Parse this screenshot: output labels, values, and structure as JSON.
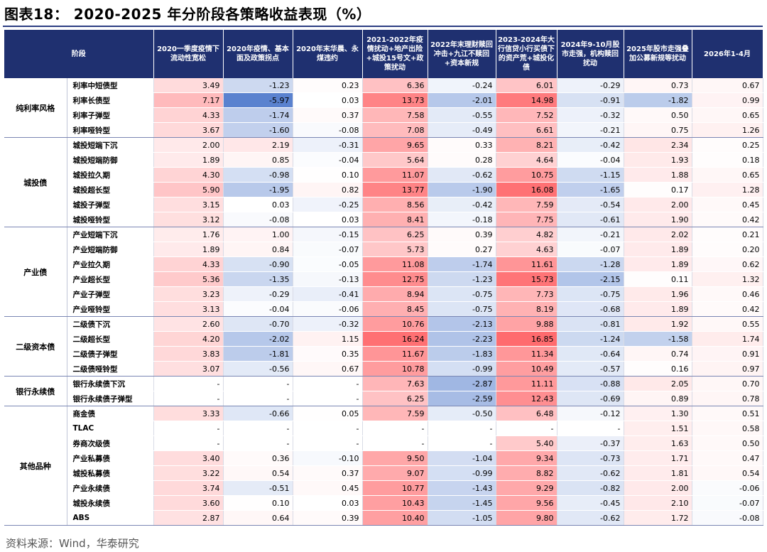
{
  "title": "图表18： 2020-2025 年分阶段各策略收益表现（%）",
  "source": "资料来源：Wind，华泰研究",
  "header": {
    "stage": "阶段",
    "columns": [
      "2020一季度疫情下流动性宽松",
      "2020年疫情、基本面及政策拐点",
      "2020年末华晨、永煤违约",
      "2021-2022年疫情扰动+地产出险+城投15号文+政策扰动",
      "2022年末理财赎回冲击+九江不赎回+资本新规",
      "2023-2024年大行信贷小行买债下的资产荒+城投化债",
      "2024年9-10月股市走强，机构赎回扰动",
      "2025年股市走强叠加公募新规等扰动",
      "2026年1-4月"
    ]
  },
  "colors": {
    "header_bg": "#1f3070",
    "pos_max": "#ef6b6e",
    "neg_max": "#5a82cf"
  },
  "groups": [
    {
      "name": "纯利率风格",
      "rows": [
        {
          "name": "利率中短债型",
          "values": [
            "3.49",
            "-1.23",
            "0.23",
            "6.36",
            "-0.24",
            "6.01",
            "-0.29",
            "0.73",
            "0.67"
          ]
        },
        {
          "name": "利率长债型",
          "values": [
            "7.17",
            "-5.97",
            "0.03",
            "13.73",
            "-2.01",
            "14.98",
            "-0.91",
            "-1.82",
            "0.99"
          ]
        },
        {
          "name": "利率子弹型",
          "values": [
            "4.33",
            "-1.74",
            "0.37",
            "7.58",
            "-0.55",
            "7.52",
            "-0.32",
            "0.50",
            "0.65"
          ]
        },
        {
          "name": "利率哑铃型",
          "values": [
            "3.67",
            "-1.60",
            "-0.08",
            "7.08",
            "-0.49",
            "6.61",
            "-0.21",
            "0.75",
            "1.26"
          ]
        }
      ]
    },
    {
      "name": "城投债",
      "rows": [
        {
          "name": "城投短端下沉",
          "values": [
            "2.00",
            "2.19",
            "-0.31",
            "9.65",
            "0.33",
            "8.21",
            "-0.42",
            "2.34",
            "0.25"
          ]
        },
        {
          "name": "城投短端防御",
          "values": [
            "1.89",
            "0.85",
            "-0.04",
            "5.64",
            "0.28",
            "4.64",
            "-0.04",
            "1.93",
            "0.18"
          ]
        },
        {
          "name": "城投拉久期",
          "values": [
            "4.30",
            "-0.98",
            "0.10",
            "11.07",
            "-0.62",
            "10.75",
            "-1.15",
            "1.88",
            "0.65"
          ]
        },
        {
          "name": "城投超长型",
          "values": [
            "5.90",
            "-1.95",
            "0.82",
            "13.77",
            "-1.90",
            "16.08",
            "-1.65",
            "0.17",
            "1.28"
          ]
        },
        {
          "name": "城投子弹型",
          "values": [
            "3.15",
            "0.03",
            "-0.25",
            "8.56",
            "-0.42",
            "7.59",
            "-0.54",
            "2.00",
            "0.45"
          ]
        },
        {
          "name": "城投哑铃型",
          "values": [
            "3.12",
            "-0.08",
            "0.03",
            "8.41",
            "-0.18",
            "7.75",
            "-0.61",
            "1.90",
            "0.42"
          ]
        }
      ]
    },
    {
      "name": "产业债",
      "rows": [
        {
          "name": "产业短端下沉",
          "values": [
            "1.76",
            "1.00",
            "-0.15",
            "6.25",
            "0.39",
            "4.82",
            "-0.21",
            "2.02",
            "0.21"
          ]
        },
        {
          "name": "产业短端防御",
          "values": [
            "1.89",
            "0.84",
            "-0.07",
            "5.73",
            "0.27",
            "4.63",
            "-0.07",
            "1.89",
            "0.20"
          ]
        },
        {
          "name": "产业拉久期",
          "values": [
            "4.33",
            "-0.90",
            "-0.05",
            "11.08",
            "-1.74",
            "11.61",
            "-1.28",
            "1.89",
            "0.62"
          ]
        },
        {
          "name": "产业超长型",
          "values": [
            "5.36",
            "-1.35",
            "-0.13",
            "12.75",
            "-1.23",
            "15.73",
            "-2.15",
            "0.11",
            "1.32"
          ]
        },
        {
          "name": "产业子弹型",
          "values": [
            "3.23",
            "-0.29",
            "-0.41",
            "8.94",
            "-0.75",
            "7.73",
            "-0.75",
            "1.96",
            "0.46"
          ]
        },
        {
          "name": "产业哑铃型",
          "values": [
            "3.13",
            "-0.04",
            "-0.06",
            "8.45",
            "-0.75",
            "8.19",
            "-0.68",
            "1.89",
            "0.42"
          ]
        }
      ]
    },
    {
      "name": "二级资本债",
      "rows": [
        {
          "name": "二级债下沉",
          "values": [
            "2.60",
            "-0.70",
            "-0.32",
            "10.76",
            "-2.13",
            "9.88",
            "-0.81",
            "1.92",
            "0.55"
          ]
        },
        {
          "name": "二级超长型",
          "values": [
            "4.20",
            "-2.02",
            "1.15",
            "16.24",
            "-2.23",
            "16.85",
            "-1.24",
            "-1.58",
            "1.74"
          ]
        },
        {
          "name": "二级债子弹型",
          "values": [
            "3.83",
            "-1.81",
            "0.35",
            "11.67",
            "-1.83",
            "11.34",
            "-0.64",
            "0.74",
            "0.91"
          ]
        },
        {
          "name": "二级债哑铃型",
          "values": [
            "3.07",
            "-0.56",
            "0.67",
            "10.78",
            "-0.99",
            "10.49",
            "-0.57",
            "0.16",
            "0.97"
          ]
        }
      ]
    },
    {
      "name": "银行永续债",
      "rows": [
        {
          "name": "银行永续债下沉",
          "values": [
            "-",
            "-",
            "-",
            "7.63",
            "-2.87",
            "11.11",
            "-0.88",
            "2.05",
            "0.70"
          ]
        },
        {
          "name": "银行永续债子弹型",
          "values": [
            "-",
            "-",
            "-",
            "6.25",
            "-2.59",
            "12.43",
            "-0.69",
            "0.89",
            "0.78"
          ]
        }
      ]
    },
    {
      "name": "其他品种",
      "rows": [
        {
          "name": "商金债",
          "values": [
            "3.33",
            "-0.66",
            "0.05",
            "7.59",
            "-0.50",
            "6.48",
            "-0.12",
            "1.30",
            "0.51"
          ]
        },
        {
          "name": "TLAC",
          "values": [
            "-",
            "-",
            "-",
            "-",
            "-",
            "-",
            "-",
            "1.51",
            "0.58"
          ]
        },
        {
          "name": "券商次级债",
          "values": [
            "-",
            "-",
            "-",
            "-",
            "-",
            "5.40",
            "-0.37",
            "1.63",
            "0.50"
          ]
        },
        {
          "name": "产业私募债",
          "values": [
            "3.40",
            "0.36",
            "-0.10",
            "9.50",
            "-1.04",
            "9.34",
            "-0.73",
            "1.71",
            "0.47"
          ]
        },
        {
          "name": "城投私募债",
          "values": [
            "3.22",
            "0.54",
            "0.37",
            "9.07",
            "-0.99",
            "8.82",
            "-0.62",
            "1.81",
            "0.54"
          ]
        },
        {
          "name": "产业永续债",
          "values": [
            "3.74",
            "-0.51",
            "0.45",
            "10.77",
            "-1.43",
            "9.29",
            "-0.82",
            "2.00",
            "-0.06"
          ]
        },
        {
          "name": "城投永续债",
          "values": [
            "3.60",
            "0.10",
            "0.03",
            "10.43",
            "-1.45",
            "9.56",
            "-0.45",
            "2.10",
            "-0.07"
          ]
        },
        {
          "name": "ABS",
          "values": [
            "2.87",
            "0.64",
            "0.39",
            "10.40",
            "-1.05",
            "9.80",
            "-0.62",
            "1.72",
            "-0.08"
          ]
        }
      ]
    }
  ]
}
